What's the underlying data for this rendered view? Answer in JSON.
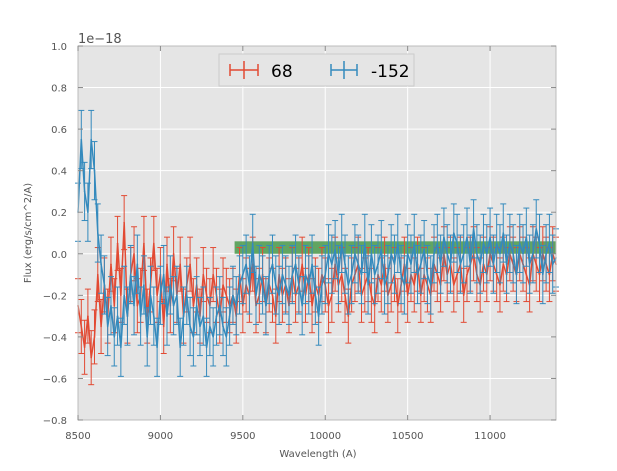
{
  "chart_data": {
    "type": "line",
    "xlabel": "Wavelength (A)",
    "ylabel": "Flux (erg/s/cm^2/A)",
    "offset_text": "1e−18",
    "xlim": [
      8500,
      11400
    ],
    "ylim": [
      -0.8,
      1.0
    ],
    "xticks": [
      8500,
      9000,
      9500,
      10000,
      10500,
      11000
    ],
    "xtick_labels": [
      "8500",
      "9000",
      "9500",
      "10000",
      "10500",
      "11000"
    ],
    "yticks": [
      -0.8,
      -0.6,
      -0.4,
      -0.2,
      0.0,
      0.2,
      0.4,
      0.6,
      0.8,
      1.0
    ],
    "ytick_labels": [
      "−0.8",
      "−0.6",
      "−0.4",
      "−0.2",
      "0.0",
      "0.2",
      "0.4",
      "0.6",
      "0.8",
      "1.0"
    ],
    "grid": true,
    "legend_position": "top-center",
    "background": "#e5e5e5",
    "band": {
      "x": [
        9450,
        11400
      ],
      "y": [
        0.0,
        0.06
      ],
      "color": "#4a9a4a"
    },
    "series": [
      {
        "name": "68",
        "color": "#e24a33",
        "x": [
          8500,
          8520,
          8540,
          8560,
          8580,
          8600,
          8620,
          8640,
          8660,
          8680,
          8700,
          8720,
          8740,
          8760,
          8780,
          8800,
          8820,
          8840,
          8860,
          8880,
          8900,
          8920,
          8940,
          8960,
          8980,
          9000,
          9020,
          9040,
          9060,
          9080,
          9100,
          9120,
          9140,
          9160,
          9180,
          9200,
          9220,
          9240,
          9260,
          9280,
          9300,
          9320,
          9340,
          9360,
          9380,
          9400,
          9420,
          9440,
          9460,
          9480,
          9500,
          9520,
          9540,
          9560,
          9580,
          9600,
          9620,
          9640,
          9660,
          9680,
          9700,
          9720,
          9740,
          9760,
          9780,
          9800,
          9820,
          9840,
          9860,
          9880,
          9900,
          9920,
          9940,
          9960,
          9980,
          10000,
          10020,
          10040,
          10060,
          10080,
          10100,
          10120,
          10140,
          10160,
          10180,
          10200,
          10220,
          10240,
          10260,
          10280,
          10300,
          10320,
          10340,
          10360,
          10380,
          10400,
          10420,
          10440,
          10460,
          10480,
          10500,
          10520,
          10540,
          10560,
          10580,
          10600,
          10620,
          10640,
          10660,
          10680,
          10700,
          10720,
          10740,
          10760,
          10780,
          10800,
          10820,
          10840,
          10860,
          10880,
          10900,
          10920,
          10940,
          10960,
          10980,
          11000,
          11020,
          11040,
          11060,
          11080,
          11100,
          11120,
          11140,
          11160,
          11180,
          11200,
          11220,
          11240,
          11260,
          11280,
          11300,
          11320,
          11340,
          11360,
          11380,
          11400
        ],
        "y": [
          -0.25,
          -0.35,
          -0.45,
          -0.3,
          -0.5,
          -0.4,
          -0.1,
          -0.35,
          -0.15,
          -0.3,
          -0.05,
          -0.25,
          0.05,
          -0.2,
          0.15,
          -0.3,
          -0.1,
          0.0,
          -0.25,
          -0.2,
          0.05,
          -0.3,
          -0.15,
          0.05,
          -0.2,
          -0.1,
          -0.35,
          -0.05,
          -0.25,
          0.0,
          -0.2,
          -0.05,
          -0.3,
          -0.15,
          -0.05,
          -0.25,
          -0.15,
          -0.3,
          -0.1,
          -0.2,
          -0.25,
          -0.1,
          -0.2,
          -0.3,
          -0.15,
          -0.2,
          -0.25,
          -0.2,
          -0.3,
          -0.1,
          -0.25,
          -0.15,
          -0.2,
          -0.05,
          -0.25,
          -0.2,
          -0.1,
          -0.25,
          -0.15,
          -0.2,
          -0.3,
          -0.1,
          -0.2,
          -0.15,
          -0.25,
          -0.1,
          -0.2,
          -0.15,
          -0.05,
          -0.2,
          -0.1,
          -0.25,
          -0.15,
          -0.2,
          -0.1,
          -0.15,
          -0.25,
          -0.2,
          -0.05,
          -0.15,
          -0.1,
          -0.2,
          -0.3,
          -0.15,
          -0.1,
          -0.05,
          -0.2,
          -0.15,
          -0.1,
          -0.2,
          -0.25,
          -0.1,
          -0.15,
          -0.05,
          -0.2,
          -0.15,
          -0.1,
          -0.25,
          -0.15,
          -0.05,
          -0.2,
          -0.1,
          -0.15,
          -0.05,
          -0.2,
          -0.1,
          -0.15,
          -0.2,
          -0.05,
          -0.1,
          -0.15,
          0.0,
          -0.1,
          -0.05,
          -0.15,
          -0.1,
          -0.05,
          -0.2,
          -0.1,
          -0.05,
          0.0,
          -0.1,
          -0.15,
          -0.05,
          -0.1,
          0.0,
          -0.05,
          -0.1,
          -0.15,
          -0.05,
          -0.1,
          0.0,
          -0.05,
          -0.1,
          0.0,
          -0.05,
          -0.1,
          -0.15,
          0.0,
          -0.05,
          -0.1,
          0.0,
          -0.05,
          -0.1,
          0.0,
          -0.05
        ],
        "err": 0.13
      },
      {
        "name": "-152",
        "color": "#348abd",
        "x": [
          8500,
          8520,
          8540,
          8560,
          8580,
          8600,
          8620,
          8640,
          8660,
          8680,
          8700,
          8720,
          8740,
          8760,
          8780,
          8800,
          8820,
          8840,
          8860,
          8880,
          8900,
          8920,
          8940,
          8960,
          8980,
          9000,
          9020,
          9040,
          9060,
          9080,
          9100,
          9120,
          9140,
          9160,
          9180,
          9200,
          9220,
          9240,
          9260,
          9280,
          9300,
          9320,
          9340,
          9360,
          9380,
          9400,
          9420,
          9440,
          9460,
          9480,
          9500,
          9520,
          9540,
          9560,
          9580,
          9600,
          9620,
          9640,
          9660,
          9680,
          9700,
          9720,
          9740,
          9760,
          9780,
          9800,
          9820,
          9840,
          9860,
          9880,
          9900,
          9920,
          9940,
          9960,
          9980,
          10000,
          10020,
          10040,
          10060,
          10080,
          10100,
          10120,
          10140,
          10160,
          10180,
          10200,
          10220,
          10240,
          10260,
          10280,
          10300,
          10320,
          10340,
          10360,
          10380,
          10400,
          10420,
          10440,
          10460,
          10480,
          10500,
          10520,
          10540,
          10560,
          10580,
          10600,
          10620,
          10640,
          10660,
          10680,
          10700,
          10720,
          10740,
          10760,
          10780,
          10800,
          10820,
          10840,
          10860,
          10880,
          10900,
          10920,
          10940,
          10960,
          10980,
          11000,
          11020,
          11040,
          11060,
          11080,
          11100,
          11120,
          11140,
          11160,
          11180,
          11200,
          11220,
          11240,
          11260,
          11280,
          11300,
          11320,
          11340,
          11360,
          11380,
          11400
        ],
        "y": [
          0.2,
          0.55,
          0.3,
          0.2,
          0.55,
          0.4,
          0.1,
          -0.05,
          -0.15,
          -0.35,
          -0.25,
          -0.4,
          -0.3,
          -0.45,
          -0.2,
          -0.3,
          -0.1,
          -0.25,
          -0.05,
          -0.3,
          -0.15,
          -0.4,
          -0.2,
          -0.3,
          -0.45,
          -0.2,
          -0.1,
          -0.3,
          -0.15,
          -0.25,
          -0.2,
          -0.45,
          -0.3,
          -0.2,
          -0.35,
          -0.4,
          -0.25,
          -0.35,
          -0.3,
          -0.45,
          -0.35,
          -0.4,
          -0.3,
          -0.25,
          -0.35,
          -0.4,
          -0.3,
          -0.2,
          -0.25,
          -0.15,
          -0.1,
          -0.05,
          -0.15,
          0.05,
          -0.2,
          -0.1,
          -0.15,
          -0.25,
          -0.1,
          -0.05,
          -0.15,
          -0.2,
          -0.1,
          -0.15,
          -0.2,
          -0.1,
          -0.05,
          -0.15,
          -0.25,
          -0.1,
          -0.15,
          -0.05,
          -0.2,
          -0.3,
          -0.15,
          -0.1,
          0.0,
          -0.05,
          0.02,
          -0.1,
          0.05,
          -0.05,
          -0.15,
          -0.1,
          0.0,
          -0.05,
          -0.1,
          0.05,
          -0.15,
          0.0,
          -0.1,
          -0.05,
          0.02,
          -0.15,
          -0.1,
          0.0,
          -0.05,
          0.05,
          -0.1,
          -0.15,
          0.0,
          -0.05,
          0.05,
          -0.1,
          -0.05,
          0.02,
          -0.1,
          -0.15,
          0.0,
          0.05,
          -0.05,
          0.08,
          0.0,
          -0.05,
          0.1,
          0.05,
          -0.05,
          0.0,
          0.08,
          -0.05,
          0.12,
          0.0,
          -0.05,
          0.05,
          0.0,
          0.08,
          -0.05,
          0.05,
          0.0,
          0.1,
          -0.05,
          0.05,
          0.0,
          -0.1,
          0.05,
          0.0,
          0.08,
          -0.05,
          0.0,
          0.12,
          0.05,
          -0.1,
          0.0,
          0.05,
          -0.05,
          -0.02
        ],
        "err": 0.14
      }
    ]
  }
}
